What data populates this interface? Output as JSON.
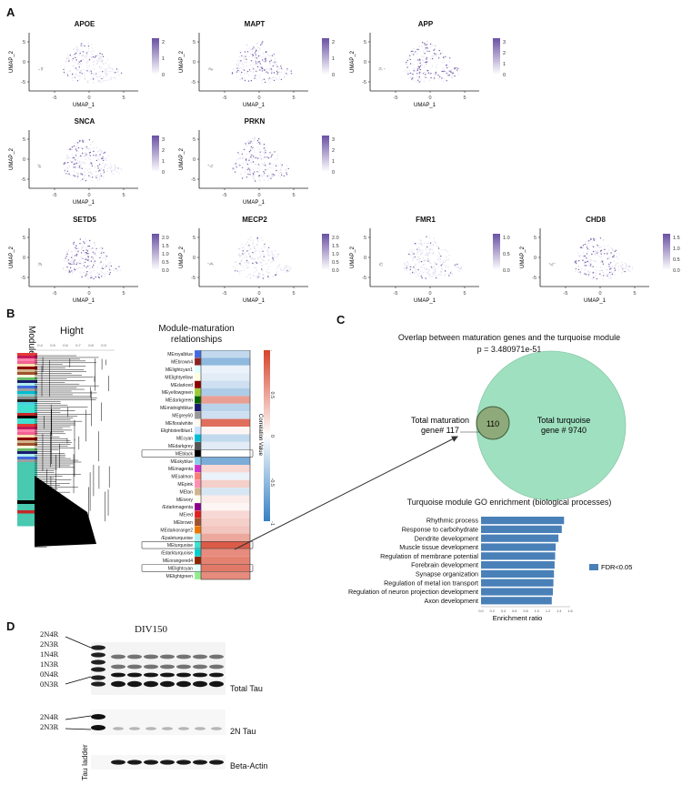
{
  "panels": {
    "a": "A",
    "b": "B",
    "c": "C",
    "d": "D"
  },
  "panel_a": {
    "xlabel": "UMAP_1",
    "ylabel": "UMAP_2",
    "x_ticks": [
      "-5",
      "0",
      "5"
    ],
    "y_ticks": [
      "5",
      "0",
      "-5"
    ],
    "accent": "#6a51a3",
    "plots": [
      {
        "gene": "APOE",
        "legend": [
          "2",
          "1",
          "0"
        ]
      },
      {
        "gene": "MAPT",
        "legend": [
          "2",
          "1",
          "0"
        ]
      },
      {
        "gene": "APP",
        "legend": [
          "3",
          "2",
          "1",
          "0"
        ]
      },
      {
        "gene": "SNCA",
        "legend": [
          "3",
          "2",
          "1",
          "0"
        ]
      },
      {
        "gene": "PRKN",
        "legend": [
          "3",
          "2",
          "1",
          "0"
        ]
      },
      {
        "gene": "SETD5",
        "legend": [
          "2.0",
          "1.5",
          "1.0",
          "0.5",
          "0.0"
        ]
      },
      {
        "gene": "MECP2",
        "legend": [
          "2.0",
          "1.5",
          "1.0",
          "0.5",
          "0.0"
        ]
      },
      {
        "gene": "FMR1",
        "legend": [
          "1.0",
          "0.5",
          "0.0"
        ]
      },
      {
        "gene": "CHD8",
        "legend": [
          "1.5",
          "1.0",
          "0.5",
          "0.0"
        ]
      }
    ]
  },
  "panel_b": {
    "module_label": "Module",
    "dendro_title": "Hight",
    "dendro_ticks": [
      "0.4",
      "0.5",
      "0.6",
      "0.7",
      "0.8",
      "0.9"
    ],
    "heatmap_title_line1": "Module-maturation",
    "heatmap_title_line2": "relationships",
    "colorbar_label": "Correlation Value",
    "colorbar_ticks": [
      "1",
      "0.5",
      "0",
      "-0.5",
      "-1"
    ],
    "modules": [
      {
        "name": "MEroyalblue",
        "swatch": "#4169e1",
        "value": -0.3
      },
      {
        "name": "MEbrown4",
        "swatch": "#8b2323",
        "value": -0.55
      },
      {
        "name": "MElightcyan1",
        "swatch": "#e0ffff",
        "value": -0.1
      },
      {
        "name": "MElightyellow",
        "swatch": "#ffffe0",
        "value": -0.15
      },
      {
        "name": "MEdarkred",
        "swatch": "#8b0000",
        "value": -0.25
      },
      {
        "name": "MEyellowgreen",
        "swatch": "#9acd32",
        "value": -0.4
      },
      {
        "name": "MEdarkgreen",
        "swatch": "#006400",
        "value": 0.5
      },
      {
        "name": "MEmidnightblue",
        "swatch": "#191970",
        "value": -0.35
      },
      {
        "name": "MEgrey60",
        "swatch": "#999999",
        "value": -0.25
      },
      {
        "name": "MEfloralwhite",
        "swatch": "#fffaf0",
        "value": 0.75
      },
      {
        "name": "Elightsteelblue1",
        "swatch": "#cae1ff",
        "value": 0.05
      },
      {
        "name": "MEcyan",
        "swatch": "#00bcd4",
        "value": -0.3
      },
      {
        "name": "MEdarkgrey",
        "swatch": "#555555",
        "value": -0.15
      },
      {
        "name": "MEblack",
        "swatch": "#000000",
        "value": 0.0
      },
      {
        "name": "MEskyblue",
        "swatch": "#87ceeb",
        "value": -0.65
      },
      {
        "name": "MEmagenta",
        "swatch": "#cc33cc",
        "value": 0.2
      },
      {
        "name": "MEsalmon",
        "swatch": "#fa8072",
        "value": -0.1
      },
      {
        "name": "MEpink",
        "swatch": "#ff8fb1",
        "value": 0.25
      },
      {
        "name": "MEtan",
        "swatch": "#d2b48c",
        "value": -0.2
      },
      {
        "name": "MEivory",
        "swatch": "#fffff0",
        "value": 0.1
      },
      {
        "name": "/Edarkmagenta",
        "swatch": "#8b008b",
        "value": 0.05
      },
      {
        "name": "MEred",
        "swatch": "#e02020",
        "value": 0.2
      },
      {
        "name": "MEbrown",
        "swatch": "#a0522d",
        "value": 0.25
      },
      {
        "name": "MEdarkorange2",
        "swatch": "#ee7600",
        "value": 0.3
      },
      {
        "name": "/Epaleturquoise",
        "swatch": "#afeeee",
        "value": 0.45
      },
      {
        "name": "MEturquoise",
        "swatch": "#40e0d0",
        "value": 0.85
      },
      {
        "name": "/Edarkturquoise",
        "swatch": "#00ced1",
        "value": 0.6
      },
      {
        "name": "MEorangered4",
        "swatch": "#8b2500",
        "value": 0.65
      },
      {
        "name": "MElightcyan",
        "swatch": "#e0ffff",
        "value": 0.7
      },
      {
        "name": "MElightgreen",
        "swatch": "#90ee90",
        "value": 0.6
      }
    ],
    "highlighted": [
      "MEblack",
      "MEturquoise",
      "MElightcyan"
    ]
  },
  "panel_c": {
    "venn_title": "Overlap between maturation genes and the turquoise module",
    "pvalue": "p = 3.480971e-51",
    "maturation_label_1": "Total maturation",
    "maturation_label_2": "gene# 117",
    "turquoise_label_1": "Total turquoise",
    "turquoise_label_2": "gene # 9740",
    "overlap": "110",
    "turquoise_color": "#9fe0c0",
    "maturation_color": "#8faa7a",
    "go_title": "Turquoise module GO enrichment (biological processes)",
    "go_xlabel": "Enrichment ratio",
    "go_legend": "FDR<0.05",
    "bar_color": "#4a80b8"
  },
  "chart_data": {
    "type": "bar",
    "title": "Turquoise module GO enrichment (biological processes)",
    "xlabel": "Enrichment ratio",
    "ylabel": "",
    "orientation": "horizontal",
    "categories": [
      "Rhythmic process",
      "Response to carbohydrate",
      "Dendrite development",
      "Muscle tissue development",
      "Regulation of membrane potential",
      "Forebrain development",
      "Synapse organization",
      "Regulation of metal ion transport",
      "Regulation of neuron projection development",
      "Axon development"
    ],
    "values": [
      1.49,
      1.45,
      1.39,
      1.34,
      1.33,
      1.32,
      1.31,
      1.3,
      1.29,
      1.27
    ],
    "xlim": [
      0,
      1.6
    ],
    "x_ticks": [
      "0.0",
      "0.2",
      "0.4",
      "0.6",
      "0.8",
      "1.0",
      "1.2",
      "1.4",
      "1.6"
    ],
    "legend": "FDR<0.05"
  },
  "panel_d": {
    "title": "DIV150",
    "ladder_labels": [
      "2N4R",
      "2N3R",
      "1N4R",
      "1N3R",
      "0N4R",
      "0N3R"
    ],
    "ladder_labels_2n": [
      "2N4R",
      "2N3R"
    ],
    "total_tau": "Total Tau",
    "tau_2n": "2N Tau",
    "beta_actin": "Beta-Actin",
    "ladder": "Tau ladder"
  }
}
